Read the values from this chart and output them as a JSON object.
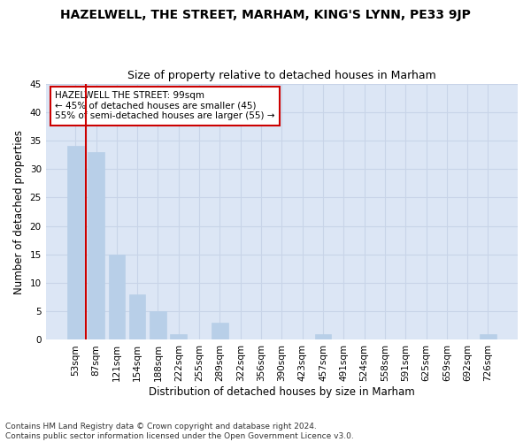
{
  "title": "HAZELWELL, THE STREET, MARHAM, KING'S LYNN, PE33 9JP",
  "subtitle": "Size of property relative to detached houses in Marham",
  "xlabel": "Distribution of detached houses by size in Marham",
  "ylabel": "Number of detached properties",
  "categories": [
    "53sqm",
    "87sqm",
    "121sqm",
    "154sqm",
    "188sqm",
    "222sqm",
    "255sqm",
    "289sqm",
    "322sqm",
    "356sqm",
    "390sqm",
    "423sqm",
    "457sqm",
    "491sqm",
    "524sqm",
    "558sqm",
    "591sqm",
    "625sqm",
    "659sqm",
    "692sqm",
    "726sqm"
  ],
  "values": [
    34,
    33,
    15,
    8,
    5,
    1,
    0,
    3,
    0,
    0,
    0,
    0,
    1,
    0,
    0,
    0,
    0,
    0,
    0,
    0,
    1
  ],
  "bar_color": "#b8cfe8",
  "bar_edge_color": "#b8cfe8",
  "grid_color": "#c8d4e8",
  "background_color": "#dce6f5",
  "annotation_box_text": "HAZELWELL THE STREET: 99sqm\n← 45% of detached houses are smaller (45)\n55% of semi-detached houses are larger (55) →",
  "annotation_box_color": "#cc0000",
  "vline_color": "#cc0000",
  "ylim": [
    0,
    45
  ],
  "yticks": [
    0,
    5,
    10,
    15,
    20,
    25,
    30,
    35,
    40,
    45
  ],
  "footer": "Contains HM Land Registry data © Crown copyright and database right 2024.\nContains public sector information licensed under the Open Government Licence v3.0.",
  "title_fontsize": 10,
  "subtitle_fontsize": 9,
  "xlabel_fontsize": 8.5,
  "ylabel_fontsize": 8.5,
  "tick_fontsize": 7.5,
  "annotation_fontsize": 7.5,
  "footer_fontsize": 6.5
}
